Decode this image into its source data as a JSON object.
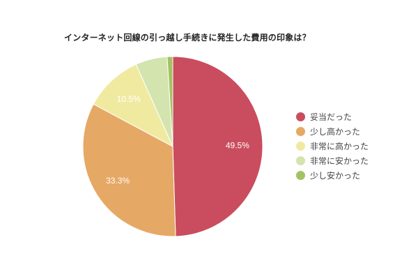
{
  "chart_data": {
    "type": "pie",
    "title": "インターネット回線の引っ越し手続きに発生した費用の印象は？",
    "categories": [
      "妥当だった",
      "少し高かった",
      "非常に高かった",
      "非常に安かった",
      "少し安かった"
    ],
    "values": [
      49.5,
      33.3,
      10.5,
      5.7,
      1.0
    ],
    "colors": [
      "#c94d5e",
      "#e6a865",
      "#f0eaa0",
      "#d3e4ae",
      "#a3c262"
    ],
    "data_labels": [
      "49.5%",
      "33.3%",
      "10.5%",
      "",
      ""
    ],
    "legend_position": "right",
    "start_angle": "12 o'clock, clockwise"
  },
  "legend": {
    "items": [
      {
        "label": "妥当だった",
        "color": "#c94d5e"
      },
      {
        "label": "少し高かった",
        "color": "#e6a865"
      },
      {
        "label": "非常に高かった",
        "color": "#f0eaa0"
      },
      {
        "label": "非常に安かった",
        "color": "#d3e4ae"
      },
      {
        "label": "少し安かった",
        "color": "#a3c262"
      }
    ]
  }
}
